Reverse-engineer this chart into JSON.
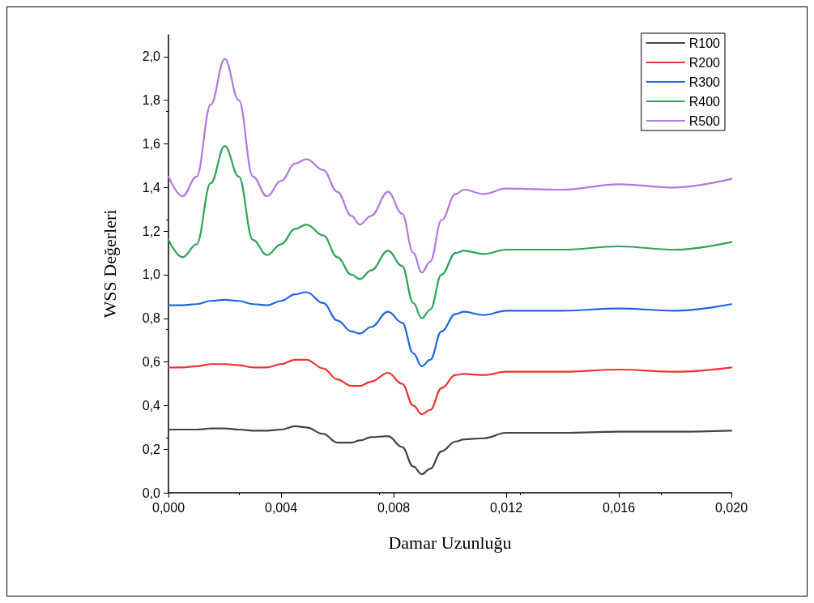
{
  "chart_data": {
    "type": "line",
    "xlabel": "Damar Uzunluğu",
    "ylabel": "WSS Değerleri",
    "x": [
      0,
      0.0005,
      0.001,
      0.0015,
      0.002,
      0.0025,
      0.003,
      0.0035,
      0.004,
      0.0045,
      0.0049,
      0.0055,
      0.006,
      0.0065,
      0.0068,
      0.0072,
      0.0078,
      0.0083,
      0.0087,
      0.009,
      0.0093,
      0.0097,
      0.0102,
      0.0105,
      0.0112,
      0.012,
      0.014,
      0.016,
      0.018,
      0.02
    ],
    "series": [
      {
        "name": "R100",
        "color": "#444444",
        "values": [
          0.29,
          0.29,
          0.29,
          0.295,
          0.295,
          0.29,
          0.285,
          0.285,
          0.29,
          0.305,
          0.3,
          0.27,
          0.23,
          0.23,
          0.24,
          0.255,
          0.26,
          0.21,
          0.12,
          0.085,
          0.11,
          0.19,
          0.235,
          0.245,
          0.25,
          0.275,
          0.275,
          0.28,
          0.28,
          0.285
        ]
      },
      {
        "name": "R200",
        "color": "#ee3333",
        "values": [
          0.575,
          0.575,
          0.58,
          0.59,
          0.59,
          0.585,
          0.575,
          0.575,
          0.59,
          0.61,
          0.61,
          0.57,
          0.52,
          0.49,
          0.49,
          0.51,
          0.55,
          0.5,
          0.4,
          0.36,
          0.38,
          0.48,
          0.54,
          0.545,
          0.54,
          0.555,
          0.555,
          0.565,
          0.555,
          0.575
        ]
      },
      {
        "name": "R300",
        "color": "#1f66e0",
        "values": [
          0.86,
          0.86,
          0.865,
          0.88,
          0.885,
          0.88,
          0.865,
          0.86,
          0.88,
          0.91,
          0.92,
          0.87,
          0.79,
          0.74,
          0.73,
          0.76,
          0.83,
          0.78,
          0.64,
          0.58,
          0.61,
          0.74,
          0.82,
          0.83,
          0.815,
          0.835,
          0.835,
          0.845,
          0.835,
          0.865
        ]
      },
      {
        "name": "R400",
        "color": "#2fa35c",
        "values": [
          1.16,
          1.08,
          1.14,
          1.42,
          1.59,
          1.45,
          1.16,
          1.09,
          1.14,
          1.21,
          1.23,
          1.18,
          1.08,
          1.0,
          0.98,
          1.02,
          1.11,
          1.04,
          0.87,
          0.8,
          0.84,
          1.0,
          1.1,
          1.11,
          1.095,
          1.115,
          1.115,
          1.13,
          1.115,
          1.15
        ]
      },
      {
        "name": "R500",
        "color": "#b07ae0",
        "values": [
          1.45,
          1.36,
          1.45,
          1.78,
          1.99,
          1.8,
          1.45,
          1.36,
          1.43,
          1.51,
          1.53,
          1.48,
          1.38,
          1.27,
          1.23,
          1.27,
          1.38,
          1.28,
          1.1,
          1.01,
          1.06,
          1.25,
          1.37,
          1.39,
          1.37,
          1.395,
          1.39,
          1.415,
          1.4,
          1.44
        ]
      }
    ],
    "xlim": [
      0,
      0.02
    ],
    "xticks": [
      {
        "value": 0,
        "label": "0,000"
      },
      {
        "value": 0.004,
        "label": "0,004"
      },
      {
        "value": 0.008,
        "label": "0,008"
      },
      {
        "value": 0.012,
        "label": "0,012"
      },
      {
        "value": 0.016,
        "label": "0,016"
      },
      {
        "value": 0.02,
        "label": "0,020"
      }
    ],
    "ylim": [
      0,
      2.1
    ],
    "yticks": [
      {
        "value": 0,
        "label": "0,0"
      },
      {
        "value": 0.2,
        "label": "0,2"
      },
      {
        "value": 0.4,
        "label": "0,4"
      },
      {
        "value": 0.6,
        "label": "0,6"
      },
      {
        "value": 0.8,
        "label": "0,8"
      },
      {
        "value": 1.0,
        "label": "1,0"
      },
      {
        "value": 1.2,
        "label": "1,2"
      },
      {
        "value": 1.4,
        "label": "1,4"
      },
      {
        "value": 1.6,
        "label": "1,6"
      },
      {
        "value": 1.8,
        "label": "1,8"
      },
      {
        "value": 2.0,
        "label": "2,0"
      }
    ],
    "grid": false,
    "legend": "top right",
    "marker": "none",
    "line_style": "solid"
  }
}
